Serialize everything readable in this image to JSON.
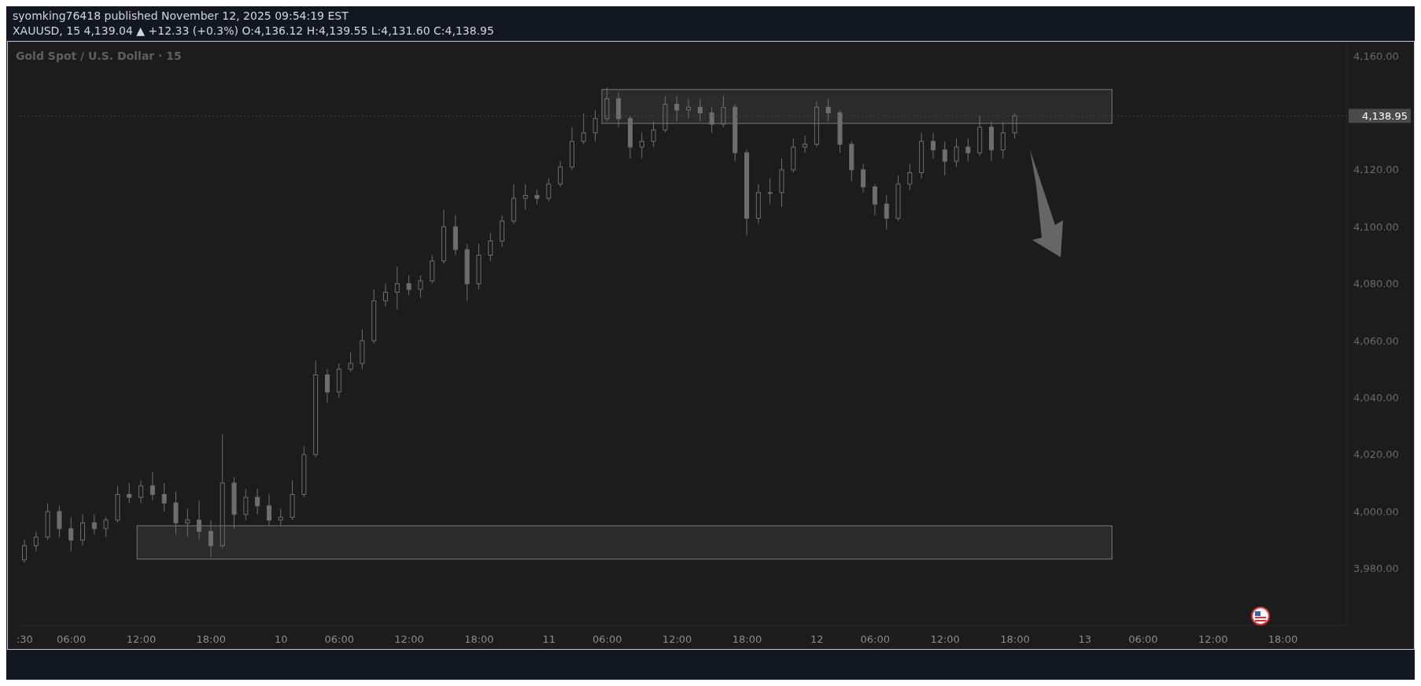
{
  "chart_data": {
    "type": "candlestick",
    "title": "Gold Spot / U.S. Dollar · 15",
    "subtitle": "XAUUSD, 15  4,139.04 ▲ +12.33 (+0.3%) O:4,136.12 H:4,139.55 L:4,131.60 C:4,138.95",
    "annotations": [
      "syomking76418 published November 12, 2025 09:54:19 EST"
    ],
    "color": "#6e6e6e",
    "categories": [
      ":30",
      null,
      null,
      null,
      "06:00",
      null,
      null,
      null,
      null,
      null,
      "12:00",
      null,
      null,
      null,
      null,
      null,
      "18:00",
      null,
      null,
      null,
      null,
      null,
      "10",
      null,
      null,
      null,
      null,
      "06:00",
      null,
      null,
      null,
      null,
      null,
      "12:00",
      null,
      null,
      null,
      null,
      null,
      "18:00",
      null,
      null,
      null,
      null,
      null,
      "11",
      null,
      null,
      null,
      null,
      "06:00",
      null,
      null,
      null,
      null,
      null,
      "12:00",
      null,
      null,
      null,
      null,
      null,
      "18:00",
      null,
      null,
      null,
      null,
      null,
      "12",
      null,
      null,
      null,
      null,
      "06:00",
      null,
      null,
      null,
      null,
      null,
      "12:00",
      null,
      null,
      null,
      null,
      null,
      "18:00",
      null,
      null,
      null,
      null,
      null,
      "13",
      null,
      null,
      null,
      null,
      "06:00",
      null,
      null,
      null,
      null,
      null,
      "12:00",
      null,
      null,
      null,
      null,
      null,
      "18:00",
      null,
      null,
      null,
      null,
      null
    ],
    "ohlc": [
      [
        3983,
        3990,
        3982,
        3988
      ],
      [
        3988,
        3993,
        3986,
        3991
      ],
      [
        3991,
        4003,
        3990,
        4000
      ],
      [
        4000,
        4002,
        3991,
        3994
      ],
      [
        3994,
        3998,
        3986,
        3990
      ],
      [
        3990,
        3999,
        3988,
        3996
      ],
      [
        3996,
        3999,
        3992,
        3994
      ],
      [
        3994,
        3998,
        3991,
        3997
      ],
      [
        3997,
        4009,
        3996,
        4006
      ],
      [
        4006,
        4010,
        4003,
        4005
      ],
      [
        4005,
        4011,
        4003,
        4009
      ],
      [
        4009,
        4014,
        4004,
        4006
      ],
      [
        4006,
        4010,
        4000,
        4003
      ],
      [
        4003,
        4007,
        3992,
        3996
      ],
      [
        3996,
        4001,
        3991,
        3997
      ],
      [
        3997,
        4004,
        3990,
        3993
      ],
      [
        3993,
        3997,
        3984,
        3988
      ],
      [
        3988,
        4027,
        3987,
        4010
      ],
      [
        4010,
        4012,
        3994,
        3999
      ],
      [
        3999,
        4008,
        3997,
        4005
      ],
      [
        4005,
        4008,
        3999,
        4002
      ],
      [
        4002,
        4006,
        3995,
        3997
      ],
      [
        3997,
        4001,
        3995,
        3998
      ],
      [
        3998,
        4011,
        3997,
        4006
      ],
      [
        4006,
        4023,
        4005,
        4020
      ],
      [
        4020,
        4053,
        4019,
        4048
      ],
      [
        4048,
        4050,
        4038,
        4042
      ],
      [
        4042,
        4052,
        4040,
        4050
      ],
      [
        4050,
        4056,
        4049,
        4052
      ],
      [
        4052,
        4064,
        4050,
        4060
      ],
      [
        4060,
        4078,
        4059,
        4074
      ],
      [
        4074,
        4080,
        4072,
        4077
      ],
      [
        4077,
        4086,
        4071,
        4080
      ],
      [
        4080,
        4083,
        4076,
        4078
      ],
      [
        4078,
        4083,
        4075,
        4081
      ],
      [
        4081,
        4090,
        4080,
        4088
      ],
      [
        4088,
        4106,
        4087,
        4100
      ],
      [
        4100,
        4104,
        4090,
        4092
      ],
      [
        4092,
        4094,
        4074,
        4080
      ],
      [
        4080,
        4094,
        4078,
        4090
      ],
      [
        4090,
        4098,
        4088,
        4095
      ],
      [
        4095,
        4104,
        4093,
        4102
      ],
      [
        4102,
        4115,
        4101,
        4110
      ],
      [
        4110,
        4115,
        4106,
        4111
      ],
      [
        4111,
        4113,
        4108,
        4110
      ],
      [
        4110,
        4117,
        4109,
        4115
      ],
      [
        4115,
        4123,
        4114,
        4121
      ],
      [
        4121,
        4135,
        4120,
        4130
      ],
      [
        4130,
        4140,
        4129,
        4133
      ],
      [
        4133,
        4141,
        4130,
        4138
      ],
      [
        4138,
        4149,
        4137,
        4145
      ],
      [
        4145,
        4147,
        4135,
        4138
      ],
      [
        4138,
        4139,
        4124,
        4128
      ],
      [
        4128,
        4133,
        4124,
        4130
      ],
      [
        4130,
        4137,
        4128,
        4134
      ],
      [
        4134,
        4146,
        4133,
        4143
      ],
      [
        4143,
        4146,
        4137,
        4141
      ],
      [
        4141,
        4145,
        4138,
        4142
      ],
      [
        4142,
        4145,
        4137,
        4140
      ],
      [
        4140,
        4142,
        4133,
        4136
      ],
      [
        4136,
        4146,
        4135,
        4142
      ],
      [
        4142,
        4143,
        4123,
        4126
      ],
      [
        4126,
        4127,
        4097,
        4103
      ],
      [
        4103,
        4115,
        4101,
        4112
      ],
      [
        4112,
        4117,
        4108,
        4112
      ],
      [
        4112,
        4124,
        4107,
        4120
      ],
      [
        4120,
        4131,
        4119,
        4128
      ],
      [
        4128,
        4132,
        4126,
        4129
      ],
      [
        4129,
        4144,
        4128,
        4142
      ],
      [
        4142,
        4145,
        4137,
        4140
      ],
      [
        4140,
        4141,
        4126,
        4129
      ],
      [
        4129,
        4130,
        4116,
        4120
      ],
      [
        4120,
        4122,
        4112,
        4114
      ],
      [
        4114,
        4115,
        4104,
        4108
      ],
      [
        4108,
        4111,
        4099,
        4103
      ],
      [
        4103,
        4118,
        4102,
        4115
      ],
      [
        4115,
        4122,
        4113,
        4119
      ],
      [
        4119,
        4133,
        4117,
        4130
      ],
      [
        4130,
        4133,
        4124,
        4127
      ],
      [
        4127,
        4130,
        4118,
        4123
      ],
      [
        4123,
        4131,
        4121,
        4128
      ],
      [
        4128,
        4131,
        4123,
        4126
      ],
      [
        4126,
        4139,
        4125,
        4135
      ],
      [
        4135,
        4137,
        4123,
        4127
      ],
      [
        4127,
        4137,
        4124,
        4133
      ],
      [
        4133,
        4140,
        4131,
        4138.95
      ],
      null,
      null,
      null,
      null,
      null,
      null,
      null,
      null,
      null,
      null,
      null,
      null,
      null,
      null,
      null,
      null,
      null,
      null,
      null,
      null,
      null,
      null,
      null,
      null,
      null,
      null,
      null,
      null
    ],
    "ylim": [
      3960,
      4165
    ],
    "yticks": [
      {
        "value": 3980,
        "label": "3,980.00"
      },
      {
        "value": 4000,
        "label": "4,000.00"
      },
      {
        "value": 4020,
        "label": "4,020.00"
      },
      {
        "value": 4040,
        "label": "4,040.00"
      },
      {
        "value": 4060,
        "label": "4,060.00"
      },
      {
        "value": 4080,
        "label": "4,080.00"
      },
      {
        "value": 4100,
        "label": "4,100.00"
      },
      {
        "value": 4120,
        "label": "4,120.00"
      },
      {
        "value": 4160,
        "label": "4,160.00"
      }
    ],
    "ref_lines": [
      {
        "axis": "y",
        "value": 4138.95,
        "label": "4,138.95",
        "line_style": "dotted",
        "color": "#4a4a4a"
      }
    ],
    "bands": [
      {
        "axis": "y",
        "from": 4136.3,
        "to": 4148.2,
        "color": "#2b2b2b"
      },
      {
        "axis": "y",
        "from": 3983.3,
        "to": 3995,
        "color": "#2b2b2b"
      }
    ]
  }
}
